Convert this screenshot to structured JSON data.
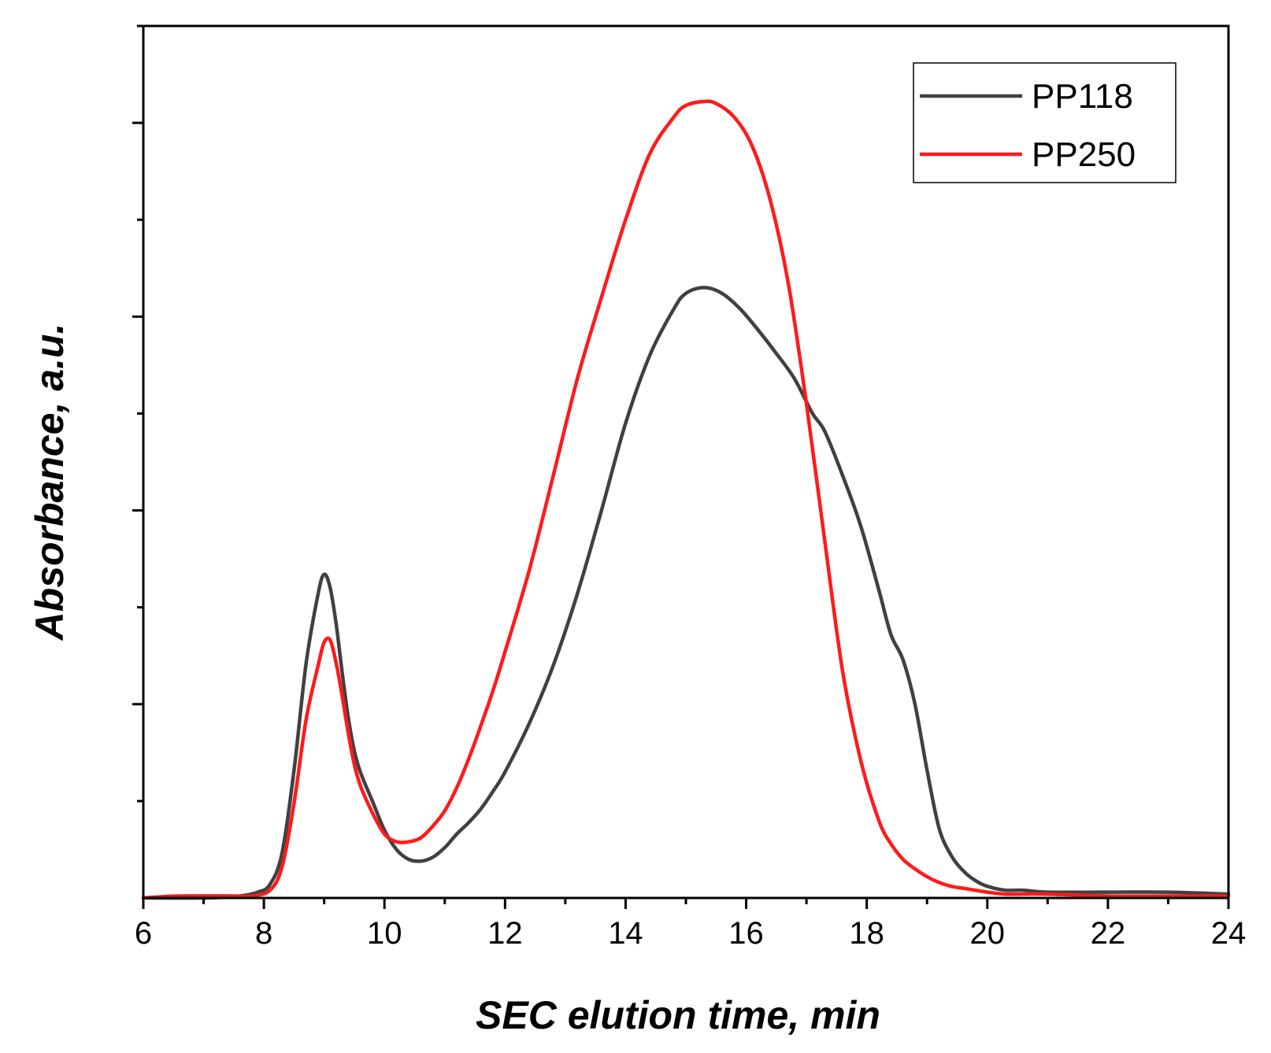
{
  "chart_data": {
    "type": "line",
    "title": "",
    "xlabel": "SEC elution time, min",
    "ylabel": "Absorbance, a.u.",
    "xlim": [
      6,
      24
    ],
    "ylim": [
      0,
      4.5
    ],
    "x_ticks": [
      6,
      8,
      10,
      12,
      14,
      16,
      18,
      20,
      22,
      24
    ],
    "x_tick_labels": [
      "6",
      "8",
      "10",
      "12",
      "14",
      "16",
      "18",
      "20",
      "22",
      "24"
    ],
    "y_tick_labels_shown": false,
    "grid": false,
    "legend_position": "top-right",
    "series": [
      {
        "name": "PP118",
        "color": "#404040",
        "x": [
          6,
          7,
          7.6,
          7.9,
          8.1,
          8.3,
          8.5,
          8.7,
          8.9,
          9.0,
          9.1,
          9.2,
          9.3,
          9.4,
          9.5,
          9.6,
          9.8,
          10.0,
          10.2,
          10.4,
          10.6,
          10.8,
          11.0,
          11.2,
          11.4,
          11.6,
          11.8,
          12.0,
          12.4,
          12.8,
          13.2,
          13.6,
          14.0,
          14.4,
          14.8,
          15.0,
          15.3,
          15.6,
          15.9,
          16.2,
          16.5,
          16.8,
          17.1,
          17.3,
          17.6,
          17.9,
          18.2,
          18.4,
          18.6,
          18.8,
          19.0,
          19.2,
          19.4,
          19.6,
          19.8,
          20.0,
          20.3,
          20.6,
          21,
          22,
          23,
          24
        ],
        "y": [
          0.0,
          0.0,
          0.01,
          0.03,
          0.07,
          0.23,
          0.66,
          1.21,
          1.57,
          1.67,
          1.6,
          1.41,
          1.16,
          0.93,
          0.76,
          0.65,
          0.5,
          0.35,
          0.25,
          0.2,
          0.19,
          0.21,
          0.26,
          0.33,
          0.39,
          0.46,
          0.55,
          0.65,
          0.9,
          1.2,
          1.57,
          2.0,
          2.45,
          2.8,
          3.04,
          3.12,
          3.15,
          3.12,
          3.04,
          2.93,
          2.81,
          2.68,
          2.5,
          2.41,
          2.18,
          1.92,
          1.59,
          1.36,
          1.23,
          1.0,
          0.66,
          0.36,
          0.22,
          0.14,
          0.09,
          0.06,
          0.04,
          0.04,
          0.03,
          0.03,
          0.03,
          0.02
        ]
      },
      {
        "name": "PP250",
        "color": "#ff1a1a",
        "x": [
          6,
          6.6,
          7.5,
          7.8,
          8.1,
          8.3,
          8.5,
          8.7,
          8.9,
          9.0,
          9.1,
          9.2,
          9.3,
          9.4,
          9.5,
          9.6,
          9.8,
          10.0,
          10.2,
          10.4,
          10.6,
          10.8,
          11.0,
          11.2,
          11.4,
          11.6,
          11.8,
          12.0,
          12.4,
          12.8,
          13.2,
          13.6,
          14.0,
          14.4,
          14.8,
          15.0,
          15.3,
          15.5,
          15.8,
          16.1,
          16.4,
          16.7,
          17.0,
          17.3,
          17.6,
          17.9,
          18.2,
          18.4,
          18.6,
          18.8,
          19.0,
          19.2,
          19.4,
          19.6,
          19.8,
          20.0,
          20.3,
          20.6,
          21,
          22,
          23,
          24
        ],
        "y": [
          0.0,
          0.01,
          0.01,
          0.01,
          0.04,
          0.16,
          0.49,
          0.92,
          1.2,
          1.32,
          1.33,
          1.21,
          1.04,
          0.85,
          0.69,
          0.58,
          0.44,
          0.33,
          0.29,
          0.29,
          0.31,
          0.37,
          0.45,
          0.57,
          0.72,
          0.89,
          1.07,
          1.27,
          1.69,
          2.18,
          2.68,
          3.1,
          3.5,
          3.84,
          4.03,
          4.09,
          4.11,
          4.1,
          4.03,
          3.88,
          3.6,
          3.17,
          2.55,
          1.85,
          1.17,
          0.71,
          0.4,
          0.28,
          0.2,
          0.15,
          0.11,
          0.08,
          0.06,
          0.05,
          0.04,
          0.03,
          0.02,
          0.02,
          0.02,
          0.01,
          0.01,
          0.01
        ]
      }
    ]
  }
}
